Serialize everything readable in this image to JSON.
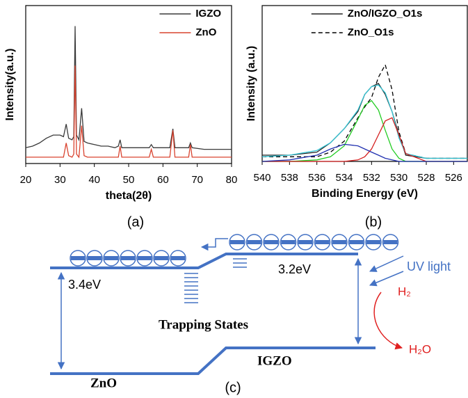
{
  "chart_data": [
    {
      "type": "line",
      "label": "(a)",
      "xlabel": "theta(2θ)",
      "ylabel": "Intensity(a.u.)",
      "x": [
        20,
        22,
        24,
        26,
        28,
        30,
        31,
        31.8,
        32.5,
        33.5,
        34,
        34.4,
        34.8,
        35.5,
        36.3,
        37,
        38,
        40,
        42,
        44,
        46,
        47,
        47.5,
        48,
        50,
        52,
        54,
        56,
        56.6,
        57.2,
        60,
        62,
        62.9,
        63.5,
        66,
        67.5,
        68,
        68.5,
        72,
        76,
        80
      ],
      "xlim": [
        20,
        80
      ],
      "xticks": [
        20,
        30,
        40,
        50,
        60,
        70,
        80
      ],
      "ylim": [
        0,
        100
      ],
      "legend": "upper right",
      "series": [
        {
          "name": "IGZO",
          "color": "#3a3a3a",
          "values": [
            10,
            11,
            13,
            16,
            18,
            18,
            17,
            25,
            16,
            15,
            17,
            87,
            18,
            15,
            35,
            14,
            13,
            12,
            11,
            11,
            10,
            11,
            15,
            10,
            10,
            10,
            10,
            10,
            12,
            10,
            10,
            10,
            22,
            10,
            10,
            10,
            13,
            10,
            9,
            9,
            9
          ]
        },
        {
          "name": "ZnO",
          "color": "#d9432f",
          "values": [
            4,
            4,
            4,
            4,
            4,
            4,
            4,
            13,
            5,
            4,
            6,
            62,
            6,
            4,
            24,
            5,
            4,
            4,
            4,
            4,
            4,
            4,
            11,
            4,
            4,
            4,
            4,
            4,
            9,
            4,
            4,
            4,
            21,
            4,
            4,
            4,
            12,
            4,
            4,
            4,
            4
          ]
        }
      ]
    },
    {
      "type": "line",
      "label": "(b)",
      "xlabel": "Binding Energy (eV)",
      "ylabel": "Intensity (a.u.)",
      "x": [
        540,
        538,
        536,
        535,
        534,
        533,
        532.5,
        532,
        531.5,
        531,
        530.5,
        530,
        529.5,
        528,
        526,
        525
      ],
      "xlim": [
        540,
        525
      ],
      "xticks": [
        540,
        538,
        536,
        534,
        532,
        530,
        528,
        526
      ],
      "ylim": [
        0,
        100
      ],
      "legend": "upper right",
      "series": [
        {
          "name": "ZnO/IGZO_O1s",
          "color": "#222222",
          "values": [
            4,
            4,
            6,
            12,
            21,
            32,
            43,
            48,
            50,
            43,
            32,
            17,
            4,
            2,
            2,
            2
          ]
        },
        {
          "name": "ZnO_O1s",
          "color": "#000000",
          "linestyle": "dashed",
          "values": [
            3,
            3,
            3,
            6,
            13,
            28,
            35,
            41,
            54,
            62,
            46,
            19,
            5,
            2,
            2,
            2
          ]
        },
        {
          "color": "#33c6d6",
          "values": [
            3,
            4,
            7,
            12,
            21,
            33,
            43,
            48,
            49,
            44,
            32,
            15,
            5,
            2,
            2,
            2
          ]
        },
        {
          "color": "#22cc22",
          "values": [
            0,
            0,
            1,
            3,
            10,
            27,
            36,
            39,
            33,
            20,
            8,
            2,
            0,
            0,
            0,
            0
          ]
        },
        {
          "color": "#d42020",
          "values": [
            0,
            0,
            0,
            0,
            0,
            1,
            3,
            8,
            17,
            26,
            28,
            17,
            5,
            0,
            0,
            0
          ]
        },
        {
          "color": "#2030b0",
          "values": [
            0,
            1,
            4,
            8,
            11,
            10,
            8,
            6,
            4,
            2,
            1,
            0,
            0,
            0,
            0,
            0
          ]
        }
      ]
    }
  ],
  "diagram": {
    "label": "(c)",
    "zno_gap": "3.4eV",
    "igzo_gap": "3.2eV",
    "uv": "UV light",
    "h2": "H₂",
    "h2o": "H₂O",
    "trapping": "Trapping States",
    "igzo": "IGZO",
    "zno": "ZnO"
  }
}
